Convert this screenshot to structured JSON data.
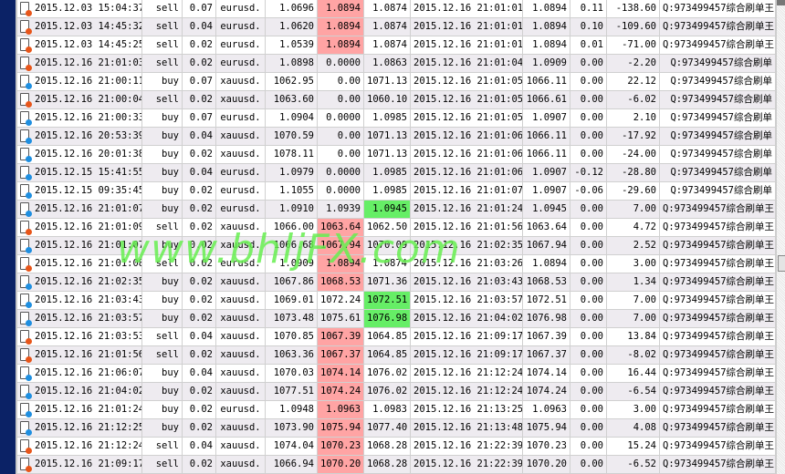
{
  "colors": {
    "sidebar": "#0b2266",
    "sl_highlight": "#ffa4a4",
    "tp_highlight": "#66ee66",
    "sell_dot": "#e8561a",
    "buy_dot": "#1f8fe0",
    "alt_row": "#eeebf0"
  },
  "watermark": "www.bhljFX.com",
  "rows": [
    {
      "open_time": "2015.12.03 15:04:37",
      "type": "sell",
      "lots": "0.07",
      "symbol": "eurusd.",
      "price": "1.0696",
      "sl": "1.0894",
      "tp": "1.0874",
      "close_time": "2015.12.16 21:01:01",
      "close_price": "1.0894",
      "commission": "0.11",
      "profit": "-138.60",
      "comment": "Q:973499457综合刷单王",
      "hl": "sl"
    },
    {
      "open_time": "2015.12.03 14:45:32",
      "type": "sell",
      "lots": "0.04",
      "symbol": "eurusd.",
      "price": "1.0620",
      "sl": "1.0894",
      "tp": "1.0874",
      "close_time": "2015.12.16 21:01:01",
      "close_price": "1.0894",
      "commission": "0.10",
      "profit": "-109.60",
      "comment": "Q:973499457综合刷单王",
      "hl": "sl"
    },
    {
      "open_time": "2015.12.03 14:45:25",
      "type": "sell",
      "lots": "0.02",
      "symbol": "eurusd.",
      "price": "1.0539",
      "sl": "1.0894",
      "tp": "1.0874",
      "close_time": "2015.12.16 21:01:01",
      "close_price": "1.0894",
      "commission": "0.01",
      "profit": "-71.00",
      "comment": "Q:973499457综合刷单王",
      "hl": "sl"
    },
    {
      "open_time": "2015.12.16 21:01:03",
      "type": "sell",
      "lots": "0.02",
      "symbol": "eurusd.",
      "price": "1.0898",
      "sl": "0.0000",
      "tp": "1.0863",
      "close_time": "2015.12.16 21:01:04",
      "close_price": "1.0909",
      "commission": "0.00",
      "profit": "-2.20",
      "comment": "Q:973499457综合刷单",
      "hl": ""
    },
    {
      "open_time": "2015.12.16 21:00:11",
      "type": "buy",
      "lots": "0.07",
      "symbol": "xauusd.",
      "price": "1062.95",
      "sl": "0.00",
      "tp": "1071.13",
      "close_time": "2015.12.16 21:01:05",
      "close_price": "1066.11",
      "commission": "0.00",
      "profit": "22.12",
      "comment": "Q:973499457综合刷单",
      "hl": ""
    },
    {
      "open_time": "2015.12.16 21:00:04",
      "type": "sell",
      "lots": "0.02",
      "symbol": "xauusd.",
      "price": "1063.60",
      "sl": "0.00",
      "tp": "1060.10",
      "close_time": "2015.12.16 21:01:05",
      "close_price": "1066.61",
      "commission": "0.00",
      "profit": "-6.02",
      "comment": "Q:973499457综合刷单",
      "hl": ""
    },
    {
      "open_time": "2015.12.16 21:00:33",
      "type": "buy",
      "lots": "0.07",
      "symbol": "eurusd.",
      "price": "1.0904",
      "sl": "0.0000",
      "tp": "1.0985",
      "close_time": "2015.12.16 21:01:05",
      "close_price": "1.0907",
      "commission": "0.00",
      "profit": "2.10",
      "comment": "Q:973499457综合刷单",
      "hl": ""
    },
    {
      "open_time": "2015.12.16 20:53:39",
      "type": "buy",
      "lots": "0.04",
      "symbol": "xauusd.",
      "price": "1070.59",
      "sl": "0.00",
      "tp": "1071.13",
      "close_time": "2015.12.16 21:01:06",
      "close_price": "1066.11",
      "commission": "0.00",
      "profit": "-17.92",
      "comment": "Q:973499457综合刷单",
      "hl": ""
    },
    {
      "open_time": "2015.12.16 20:01:38",
      "type": "buy",
      "lots": "0.02",
      "symbol": "xauusd.",
      "price": "1078.11",
      "sl": "0.00",
      "tp": "1071.13",
      "close_time": "2015.12.16 21:01:06",
      "close_price": "1066.11",
      "commission": "0.00",
      "profit": "-24.00",
      "comment": "Q:973499457综合刷单",
      "hl": ""
    },
    {
      "open_time": "2015.12.15 15:41:55",
      "type": "buy",
      "lots": "0.04",
      "symbol": "eurusd.",
      "price": "1.0979",
      "sl": "0.0000",
      "tp": "1.0985",
      "close_time": "2015.12.16 21:01:06",
      "close_price": "1.0907",
      "commission": "-0.12",
      "profit": "-28.80",
      "comment": "Q:973499457综合刷单",
      "hl": ""
    },
    {
      "open_time": "2015.12.15 09:35:45",
      "type": "buy",
      "lots": "0.02",
      "symbol": "eurusd.",
      "price": "1.1055",
      "sl": "0.0000",
      "tp": "1.0985",
      "close_time": "2015.12.16 21:01:07",
      "close_price": "1.0907",
      "commission": "-0.06",
      "profit": "-29.60",
      "comment": "Q:973499457综合刷单",
      "hl": ""
    },
    {
      "open_time": "2015.12.16 21:01:07",
      "type": "buy",
      "lots": "0.02",
      "symbol": "eurusd.",
      "price": "1.0910",
      "sl": "1.0939",
      "tp": "1.0945",
      "close_time": "2015.12.16 21:01:24",
      "close_price": "1.0945",
      "commission": "0.00",
      "profit": "7.00",
      "comment": "Q:973499457综合刷单王",
      "hl": "tp"
    },
    {
      "open_time": "2015.12.16 21:01:09",
      "type": "sell",
      "lots": "0.02",
      "symbol": "xauusd.",
      "price": "1066.00",
      "sl": "1063.64",
      "tp": "1062.50",
      "close_time": "2015.12.16 21:01:56",
      "close_price": "1063.64",
      "commission": "0.00",
      "profit": "4.72",
      "comment": "Q:973499457综合刷单王",
      "hl": "sl"
    },
    {
      "open_time": "2015.12.16 21:01:07",
      "type": "buy",
      "lots": "0.02",
      "symbol": "xauusd.",
      "price": "1066.68",
      "sl": "1067.94",
      "tp": "1070.09",
      "close_time": "2015.12.16 21:02:35",
      "close_price": "1067.94",
      "commission": "0.00",
      "profit": "2.52",
      "comment": "Q:973499457综合刷单王",
      "hl": "sl"
    },
    {
      "open_time": "2015.12.16 21:01:08",
      "type": "sell",
      "lots": "0.02",
      "symbol": "eurusd.",
      "price": "1.0909",
      "sl": "1.0894",
      "tp": "1.0874",
      "close_time": "2015.12.16 21:03:26",
      "close_price": "1.0894",
      "commission": "0.00",
      "profit": "3.00",
      "comment": "Q:973499457综合刷单王",
      "hl": "sl"
    },
    {
      "open_time": "2015.12.16 21:02:35",
      "type": "buy",
      "lots": "0.02",
      "symbol": "xauusd.",
      "price": "1067.86",
      "sl": "1068.53",
      "tp": "1071.36",
      "close_time": "2015.12.16 21:03:43",
      "close_price": "1068.53",
      "commission": "0.00",
      "profit": "1.34",
      "comment": "Q:973499457综合刷单王",
      "hl": "sl"
    },
    {
      "open_time": "2015.12.16 21:03:43",
      "type": "buy",
      "lots": "0.02",
      "symbol": "xauusd.",
      "price": "1069.01",
      "sl": "1072.24",
      "tp": "1072.51",
      "close_time": "2015.12.16 21:03:57",
      "close_price": "1072.51",
      "commission": "0.00",
      "profit": "7.00",
      "comment": "Q:973499457综合刷单王",
      "hl": "tp"
    },
    {
      "open_time": "2015.12.16 21:03:57",
      "type": "buy",
      "lots": "0.02",
      "symbol": "xauusd.",
      "price": "1073.48",
      "sl": "1075.61",
      "tp": "1076.98",
      "close_time": "2015.12.16 21:04:02",
      "close_price": "1076.98",
      "commission": "0.00",
      "profit": "7.00",
      "comment": "Q:973499457综合刷单王",
      "hl": "tp"
    },
    {
      "open_time": "2015.12.16 21:03:53",
      "type": "sell",
      "lots": "0.04",
      "symbol": "xauusd.",
      "price": "1070.85",
      "sl": "1067.39",
      "tp": "1064.85",
      "close_time": "2015.12.16 21:09:17",
      "close_price": "1067.39",
      "commission": "0.00",
      "profit": "13.84",
      "comment": "Q:973499457综合刷单王",
      "hl": "sl"
    },
    {
      "open_time": "2015.12.16 21:01:56",
      "type": "sell",
      "lots": "0.02",
      "symbol": "xauusd.",
      "price": "1063.36",
      "sl": "1067.37",
      "tp": "1064.85",
      "close_time": "2015.12.16 21:09:17",
      "close_price": "1067.37",
      "commission": "0.00",
      "profit": "-8.02",
      "comment": "Q:973499457综合刷单王",
      "hl": "sl"
    },
    {
      "open_time": "2015.12.16 21:06:07",
      "type": "buy",
      "lots": "0.04",
      "symbol": "xauusd.",
      "price": "1070.03",
      "sl": "1074.14",
      "tp": "1076.02",
      "close_time": "2015.12.16 21:12:24",
      "close_price": "1074.14",
      "commission": "0.00",
      "profit": "16.44",
      "comment": "Q:973499457综合刷单王",
      "hl": "sl"
    },
    {
      "open_time": "2015.12.16 21:04:02",
      "type": "buy",
      "lots": "0.02",
      "symbol": "xauusd.",
      "price": "1077.51",
      "sl": "1074.24",
      "tp": "1076.02",
      "close_time": "2015.12.16 21:12:24",
      "close_price": "1074.24",
      "commission": "0.00",
      "profit": "-6.54",
      "comment": "Q:973499457综合刷单王",
      "hl": "sl"
    },
    {
      "open_time": "2015.12.16 21:01:24",
      "type": "buy",
      "lots": "0.02",
      "symbol": "eurusd.",
      "price": "1.0948",
      "sl": "1.0963",
      "tp": "1.0983",
      "close_time": "2015.12.16 21:13:25",
      "close_price": "1.0963",
      "commission": "0.00",
      "profit": "3.00",
      "comment": "Q:973499457综合刷单王",
      "hl": "sl"
    },
    {
      "open_time": "2015.12.16 21:12:25",
      "type": "buy",
      "lots": "0.02",
      "symbol": "xauusd.",
      "price": "1073.90",
      "sl": "1075.94",
      "tp": "1077.40",
      "close_time": "2015.12.16 21:13:48",
      "close_price": "1075.94",
      "commission": "0.00",
      "profit": "4.08",
      "comment": "Q:973499457综合刷单王",
      "hl": "sl"
    },
    {
      "open_time": "2015.12.16 21:12:24",
      "type": "sell",
      "lots": "0.04",
      "symbol": "xauusd.",
      "price": "1074.04",
      "sl": "1070.23",
      "tp": "1068.28",
      "close_time": "2015.12.16 21:22:39",
      "close_price": "1070.23",
      "commission": "0.00",
      "profit": "15.24",
      "comment": "Q:973499457综合刷单王",
      "hl": "sl"
    },
    {
      "open_time": "2015.12.16 21:09:17",
      "type": "sell",
      "lots": "0.02",
      "symbol": "xauusd.",
      "price": "1066.94",
      "sl": "1070.20",
      "tp": "1068.28",
      "close_time": "2015.12.16 21:22:39",
      "close_price": "1070.20",
      "commission": "0.00",
      "profit": "-6.52",
      "comment": "Q:973499457综合刷单王",
      "hl": "sl"
    }
  ]
}
